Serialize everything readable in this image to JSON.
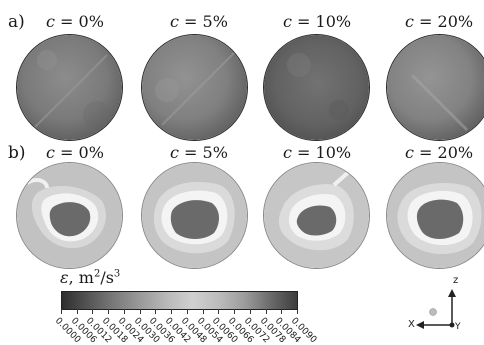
{
  "row_labels": {
    "a": "a)",
    "b": "b)"
  },
  "concentrations": [
    "0%",
    "5%",
    "10%",
    "20%"
  ],
  "c_symbol": "c",
  "eq_sign": " = ",
  "colorbar": {
    "symbol": "ε",
    "unit_text": ", m",
    "unit_sup1": "2",
    "unit_mid": "/s",
    "unit_sup2": "3",
    "ticks": [
      "0.0000",
      "0.0006",
      "0.0012",
      "0.0018",
      "0.0024",
      "0.0030",
      "0.0036",
      "0.0042",
      "0.0048",
      "0.0054",
      "0.0060",
      "0.0066",
      "0.0072",
      "0.0078",
      "0.0084",
      "0.0090"
    ],
    "gradient_colors": [
      "#2e2e2e",
      "#555555",
      "#7a7a7a",
      "#9a9a9a",
      "#b8b8b8",
      "#d0d0d0",
      "#bcbcbc",
      "#9c9c9c",
      "#6a6a6a",
      "#3e3e3e"
    ]
  },
  "axes": {
    "z": "z",
    "x": "X",
    "y": "Y"
  },
  "colors": {
    "disc_fill_a": [
      "#787878",
      "#7e7e7e",
      "#646464",
      "#808080"
    ],
    "disc_core_b": "#6a6a6a",
    "disc_ring_b": "#f2f2f2",
    "disc_outer_b": "#c0c0c0"
  }
}
